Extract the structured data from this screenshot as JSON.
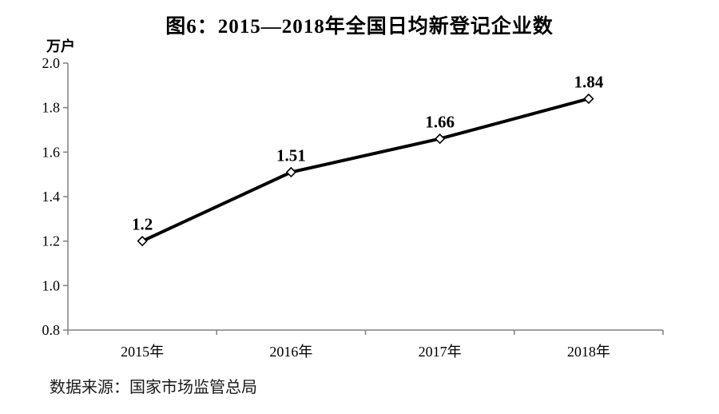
{
  "chart_data": {
    "type": "line",
    "title": "图6：2015—2018年全国日均新登记企业数",
    "unit_label": "万户",
    "source_note": "数据来源：国家市场监管总局",
    "categories": [
      "2015年",
      "2016年",
      "2017年",
      "2018年"
    ],
    "values": [
      1.2,
      1.51,
      1.66,
      1.84
    ],
    "value_labels": [
      "1.2",
      "1.51",
      "1.66",
      "1.84"
    ],
    "ylim": [
      0.8,
      2.0
    ],
    "ytick_step": 0.2,
    "grid": false,
    "legend": "none",
    "marker": "open-diamond",
    "colors": {
      "line": "#000000",
      "axis": "#808080",
      "text": "#000000",
      "marker_fill": "#ffffff"
    }
  }
}
